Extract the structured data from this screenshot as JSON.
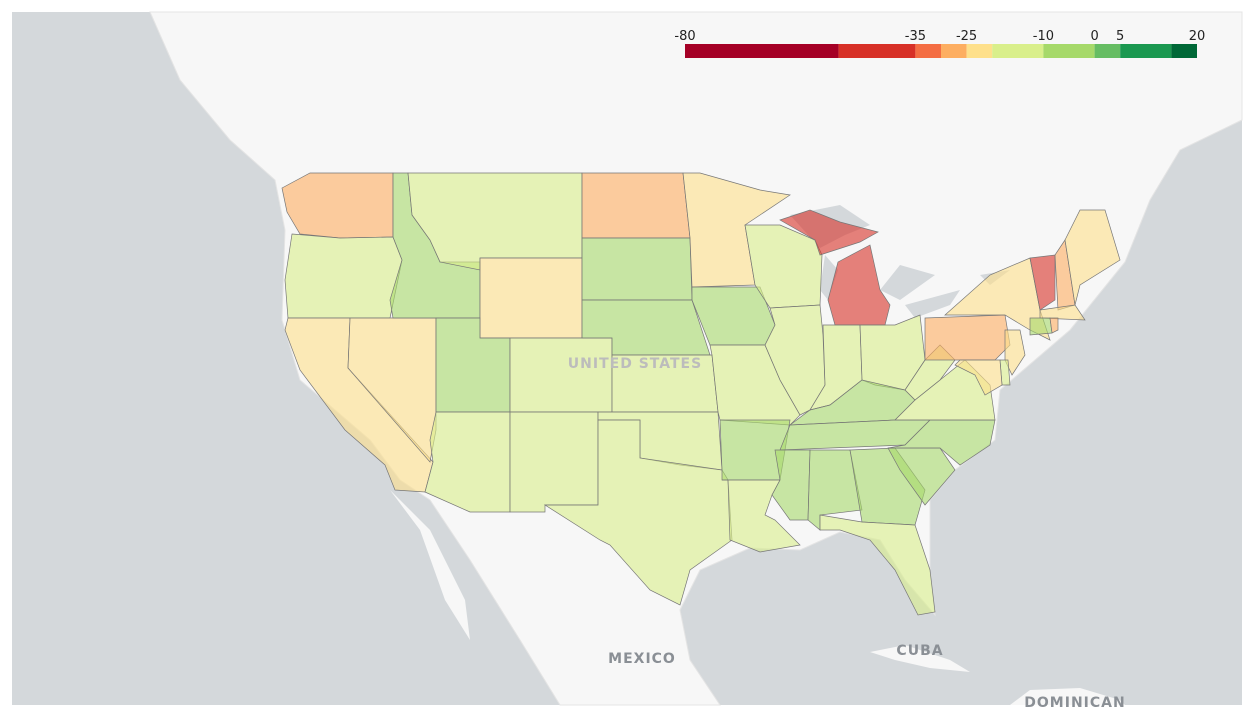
{
  "chart_data": {
    "type": "choropleth",
    "clim": [
      -80,
      20
    ],
    "colorbar_ticks": [
      -80,
      -35,
      -25,
      -10,
      0,
      5,
      20
    ],
    "colorscale": [
      {
        "from": -80,
        "to": -50,
        "color": "#a50026"
      },
      {
        "from": -50,
        "to": -35,
        "color": "#d73027"
      },
      {
        "from": -35,
        "to": -30,
        "color": "#f46d43"
      },
      {
        "from": -30,
        "to": -25,
        "color": "#fdae61"
      },
      {
        "from": -25,
        "to": -20,
        "color": "#fee08b"
      },
      {
        "from": -20,
        "to": -10,
        "color": "#d9ef8b"
      },
      {
        "from": -10,
        "to": 0,
        "color": "#a6d96a"
      },
      {
        "from": 0,
        "to": 5,
        "color": "#66bd63"
      },
      {
        "from": 5,
        "to": 15,
        "color": "#1a9850"
      },
      {
        "from": 15,
        "to": 20,
        "color": "#006837"
      }
    ],
    "values": [
      -27,
      -15,
      -22,
      -22,
      -8,
      -15,
      -22,
      -8,
      -15,
      -15,
      -15,
      -27,
      -8,
      -3,
      -15,
      -15,
      -15,
      -22,
      -3,
      -15,
      -8,
      -15,
      -15,
      -15,
      -40,
      -40,
      -15,
      -15,
      -8,
      -8,
      -8,
      -8,
      -3,
      -15,
      -8,
      -8,
      -15,
      -15,
      -27,
      -22,
      -40,
      -27,
      -22,
      -22,
      -8,
      -27,
      -22,
      -15,
      -22
    ],
    "map_labels": [
      "UNITED STATES",
      "MEXICO",
      "CUBA",
      "DOMINICAN"
    ]
  }
}
